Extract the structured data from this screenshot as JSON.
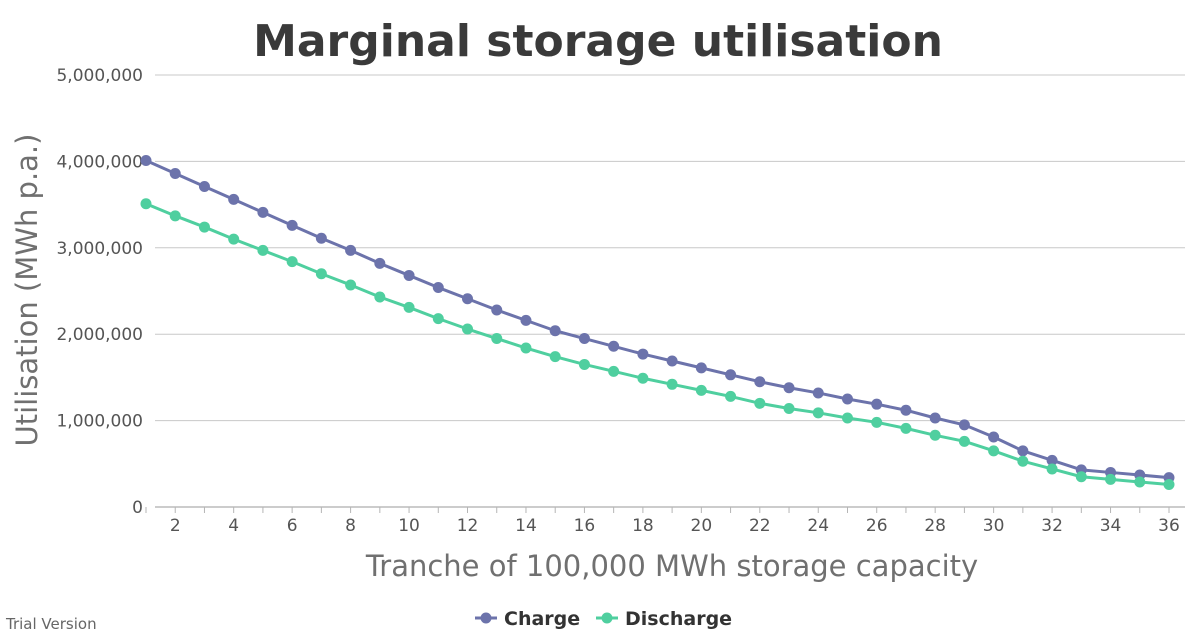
{
  "watermark": "Trial Version",
  "chart_data": {
    "type": "line",
    "title": "Marginal storage utilisation",
    "xlabel": "Tranche of 100,000 MWh storage capacity",
    "ylabel": "Utilisation (MWh p.a.)",
    "ylim": [
      0,
      5000000
    ],
    "xlim": [
      1,
      36
    ],
    "yticks": [
      "0",
      "1,000,000",
      "2,000,000",
      "3,000,000",
      "4,000,000",
      "5,000,000"
    ],
    "xticks": [
      "2",
      "4",
      "6",
      "8",
      "10",
      "12",
      "14",
      "16",
      "18",
      "20",
      "22",
      "24",
      "26",
      "28",
      "30",
      "32",
      "34",
      "36"
    ],
    "grid": "horizontal",
    "legend_position": "bottom-center",
    "x": [
      1,
      2,
      3,
      4,
      5,
      6,
      7,
      8,
      9,
      10,
      11,
      12,
      13,
      14,
      15,
      16,
      17,
      18,
      19,
      20,
      21,
      22,
      23,
      24,
      25,
      26,
      27,
      28,
      29,
      30,
      31,
      32,
      33,
      34,
      35,
      36
    ],
    "series": [
      {
        "name": "Charge",
        "color": "#6c73ab",
        "values": [
          4010000,
          3860000,
          3710000,
          3560000,
          3410000,
          3260000,
          3110000,
          2970000,
          2820000,
          2680000,
          2540000,
          2410000,
          2280000,
          2160000,
          2040000,
          1950000,
          1860000,
          1770000,
          1690000,
          1610000,
          1530000,
          1450000,
          1380000,
          1320000,
          1250000,
          1190000,
          1120000,
          1030000,
          950000,
          810000,
          650000,
          540000,
          430000,
          400000,
          370000,
          340000
        ]
      },
      {
        "name": "Discharge",
        "color": "#4fcf9f",
        "values": [
          3510000,
          3370000,
          3240000,
          3100000,
          2970000,
          2840000,
          2700000,
          2570000,
          2430000,
          2310000,
          2180000,
          2060000,
          1950000,
          1840000,
          1740000,
          1650000,
          1570000,
          1490000,
          1420000,
          1350000,
          1280000,
          1200000,
          1140000,
          1090000,
          1030000,
          980000,
          910000,
          830000,
          760000,
          650000,
          530000,
          440000,
          350000,
          320000,
          290000,
          260000
        ]
      }
    ]
  }
}
